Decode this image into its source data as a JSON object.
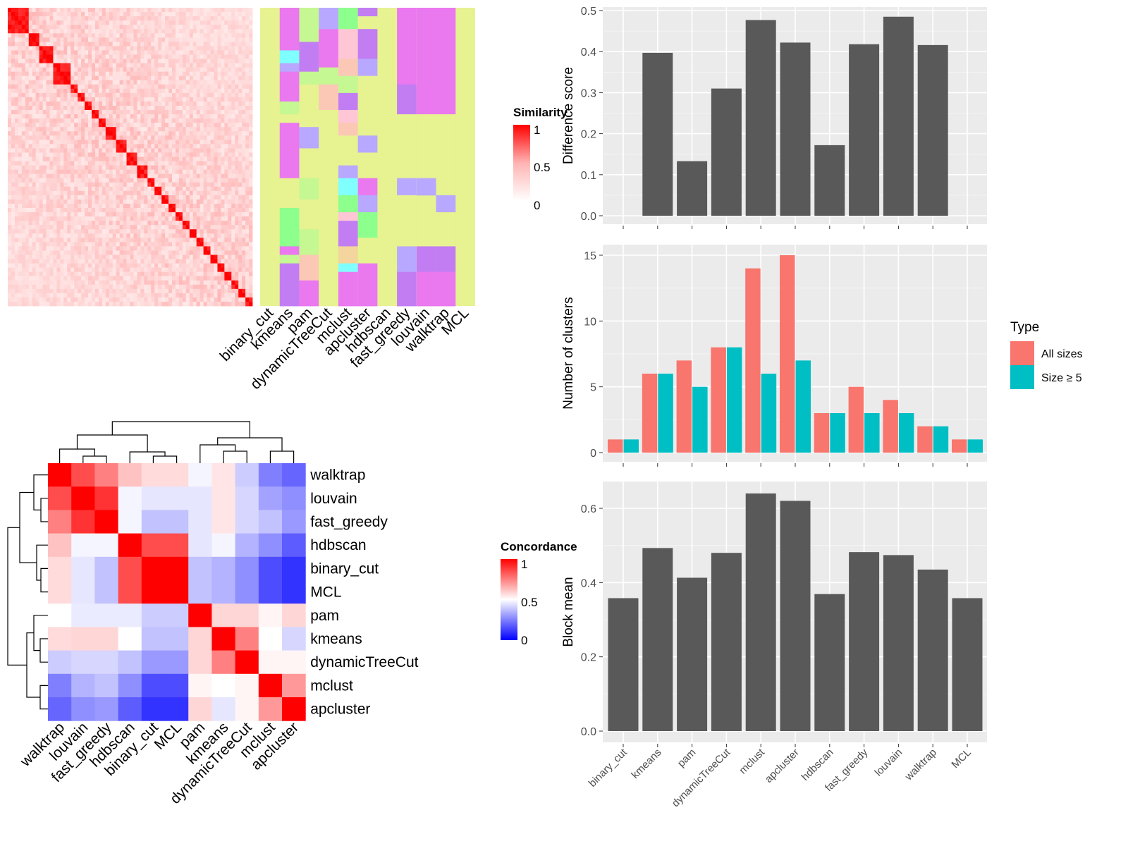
{
  "heatmap_top": {
    "legend_title": "Similarity",
    "legend_ticks": [
      "1",
      "0.5",
      "0"
    ],
    "column_labels": [
      "binary_cut",
      "kmeans",
      "pam",
      "dynamicTreeCut",
      "mclust",
      "apcluster",
      "hdbscan",
      "fast_greedy",
      "louvain",
      "walktrap",
      "MCL"
    ],
    "colors": {
      "high": "#ff0000",
      "mid": "#ffb3b3",
      "low": "#ffffff",
      "background": "#e7f291"
    },
    "palette": [
      "#e7f291",
      "#ea78ef",
      "#c27df3",
      "#b8a8ff",
      "#8dff8d",
      "#ffc6d6",
      "#80ffff",
      "#f3d59d",
      "#fbc8b6",
      "#c5f792"
    ]
  },
  "heatmap_bottom": {
    "legend_title": "Concordance",
    "legend_ticks": [
      "1",
      "0.5",
      "0"
    ],
    "labels": [
      "walktrap",
      "louvain",
      "fast_greedy",
      "hdbscan",
      "binary_cut",
      "MCL",
      "pam",
      "kmeans",
      "dynamicTreeCut",
      "mclust",
      "apcluster"
    ],
    "matrix": [
      [
        1.0,
        0.85,
        0.75,
        0.62,
        0.57,
        0.57,
        0.48,
        0.55,
        0.4,
        0.25,
        0.2
      ],
      [
        0.85,
        1.0,
        0.9,
        0.48,
        0.45,
        0.45,
        0.45,
        0.55,
        0.42,
        0.32,
        0.28
      ],
      [
        0.75,
        0.9,
        1.0,
        0.48,
        0.38,
        0.38,
        0.45,
        0.55,
        0.42,
        0.38,
        0.3
      ],
      [
        0.62,
        0.48,
        0.48,
        1.0,
        0.85,
        0.85,
        0.45,
        0.48,
        0.35,
        0.28,
        0.18
      ],
      [
        0.57,
        0.45,
        0.38,
        0.85,
        1.0,
        1.0,
        0.38,
        0.35,
        0.28,
        0.15,
        0.1
      ],
      [
        0.57,
        0.45,
        0.38,
        0.85,
        1.0,
        1.0,
        0.38,
        0.35,
        0.28,
        0.15,
        0.1
      ],
      [
        0.5,
        0.46,
        0.46,
        0.46,
        0.4,
        0.4,
        1.0,
        0.58,
        0.58,
        0.52,
        0.58
      ],
      [
        0.57,
        0.58,
        0.58,
        0.5,
        0.38,
        0.38,
        0.58,
        1.0,
        0.75,
        0.5,
        0.42
      ],
      [
        0.4,
        0.42,
        0.42,
        0.38,
        0.3,
        0.3,
        0.58,
        0.75,
        1.0,
        0.52,
        0.52
      ],
      [
        0.25,
        0.35,
        0.38,
        0.28,
        0.15,
        0.15,
        0.52,
        0.5,
        0.52,
        1.0,
        0.7
      ],
      [
        0.2,
        0.28,
        0.3,
        0.18,
        0.1,
        0.1,
        0.58,
        0.45,
        0.52,
        0.7,
        1.0
      ]
    ],
    "colors": {
      "high": "#ff0000",
      "mid": "#ffffff",
      "low": "#0000ff"
    }
  },
  "chart_data": [
    {
      "type": "bar",
      "categories": [
        "binary_cut",
        "kmeans",
        "pam",
        "dynamicTreeCut",
        "mclust",
        "apcluster",
        "hdbscan",
        "fast_greedy",
        "louvain",
        "walktrap",
        "MCL"
      ],
      "values": [
        0.0,
        0.397,
        0.133,
        0.31,
        0.477,
        0.422,
        0.172,
        0.418,
        0.485,
        0.416,
        0.0
      ],
      "ylabel": "Difference score",
      "ylim": [
        0,
        0.5
      ],
      "yticks": [
        "0.0",
        "0.1",
        "0.2",
        "0.3",
        "0.4",
        "0.5"
      ],
      "grid": true
    },
    {
      "type": "bar",
      "categories": [
        "binary_cut",
        "kmeans",
        "pam",
        "dynamicTreeCut",
        "mclust",
        "apcluster",
        "hdbscan",
        "fast_greedy",
        "louvain",
        "walktrap",
        "MCL"
      ],
      "series": [
        {
          "name": "All sizes",
          "values": [
            1,
            6,
            7,
            8,
            14,
            15,
            3,
            5,
            4,
            2,
            1
          ],
          "color": "#f8766d"
        },
        {
          "name": "Size ≥ 5",
          "values": [
            1,
            6,
            5,
            8,
            6,
            7,
            3,
            3,
            3,
            2,
            1
          ],
          "color": "#00bfc4"
        }
      ],
      "ylabel": "Number of clusters",
      "legend_title": "Type",
      "ylim": [
        0,
        15.8
      ],
      "yticks": [
        "0",
        "5",
        "10",
        "15"
      ],
      "grid": true
    },
    {
      "type": "bar",
      "categories": [
        "binary_cut",
        "kmeans",
        "pam",
        "dynamicTreeCut",
        "mclust",
        "apcluster",
        "hdbscan",
        "fast_greedy",
        "louvain",
        "walktrap",
        "MCL"
      ],
      "values": [
        0.358,
        0.493,
        0.413,
        0.48,
        0.64,
        0.62,
        0.369,
        0.482,
        0.474,
        0.435,
        0.358
      ],
      "ylabel": "Block mean",
      "ylim": [
        0,
        0.68
      ],
      "yticks": [
        "0.0",
        "0.2",
        "0.4",
        "0.6"
      ],
      "grid": true
    }
  ]
}
